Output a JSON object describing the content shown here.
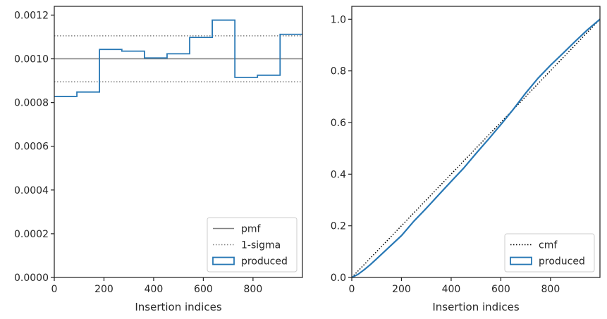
{
  "chart_data": [
    {
      "type": "step",
      "xlabel": "Insertion indices",
      "ylabel": "",
      "xlim": [
        0,
        999
      ],
      "ylim": [
        0,
        0.00124
      ],
      "x_ticks": [
        0,
        200,
        400,
        600,
        800
      ],
      "x_tick_labels": [
        "0",
        "200",
        "400",
        "600",
        "800"
      ],
      "y_ticks": [
        0,
        0.0002,
        0.0004,
        0.0006,
        0.0008,
        0.001,
        0.0012
      ],
      "y_tick_labels": [
        "0.0000",
        "0.0002",
        "0.0004",
        "0.0006",
        "0.0008",
        "0.0010",
        "0.0012"
      ],
      "reference_lines": [
        {
          "name": "pmf",
          "y": 0.001,
          "style": "solid",
          "color": "#808080"
        },
        {
          "name": "1-sigma",
          "y": 0.001105,
          "style": "dotted",
          "color": "#808080"
        },
        {
          "name": "1-sigma",
          "y": 0.000895,
          "style": "dotted",
          "color": "#808080"
        }
      ],
      "series": [
        {
          "name": "produced",
          "style": "step",
          "color": "#2878b5",
          "bin_edges": [
            0,
            91,
            182,
            272,
            363,
            454,
            545,
            636,
            727,
            818,
            909,
            999
          ],
          "values": [
            0.000828,
            0.000848,
            0.001043,
            0.001035,
            0.001004,
            0.001023,
            0.001098,
            0.001177,
            0.000915,
            0.000925,
            0.001112
          ]
        }
      ],
      "legend": {
        "position": "lower right",
        "entries": [
          {
            "label": "pmf",
            "kind": "solid-line",
            "color": "#808080"
          },
          {
            "label": "1-sigma",
            "kind": "dotted-line",
            "color": "#808080"
          },
          {
            "label": "produced",
            "kind": "patch",
            "color": "#2878b5"
          }
        ]
      },
      "grid": false
    },
    {
      "type": "line",
      "xlabel": "Insertion indices",
      "ylabel": "",
      "xlim": [
        0,
        999
      ],
      "ylim": [
        0,
        1.05
      ],
      "x_ticks": [
        0,
        200,
        400,
        600,
        800
      ],
      "x_tick_labels": [
        "0",
        "200",
        "400",
        "600",
        "800"
      ],
      "y_ticks": [
        0,
        0.2,
        0.4,
        0.6,
        0.8,
        1.0
      ],
      "y_tick_labels": [
        "0.0",
        "0.2",
        "0.4",
        "0.6",
        "0.8",
        "1.0"
      ],
      "series": [
        {
          "name": "cmf",
          "style": "dotted",
          "color": "#000000",
          "x": [
            0,
            999
          ],
          "y": [
            0,
            1.0
          ]
        },
        {
          "name": "produced",
          "style": "solid",
          "color": "#2878b5",
          "x": [
            0,
            25,
            50,
            75,
            100,
            150,
            200,
            250,
            300,
            350,
            400,
            450,
            500,
            550,
            600,
            650,
            700,
            750,
            800,
            850,
            900,
            950,
            999
          ],
          "y": [
            0,
            0.012,
            0.03,
            0.05,
            0.072,
            0.117,
            0.162,
            0.218,
            0.268,
            0.32,
            0.372,
            0.423,
            0.48,
            0.535,
            0.592,
            0.651,
            0.714,
            0.772,
            0.822,
            0.868,
            0.915,
            0.96,
            1.0
          ]
        }
      ],
      "legend": {
        "position": "lower right",
        "entries": [
          {
            "label": "cmf",
            "kind": "dotted-line",
            "color": "#000000"
          },
          {
            "label": "produced",
            "kind": "patch",
            "color": "#2878b5"
          }
        ]
      },
      "grid": false
    }
  ]
}
